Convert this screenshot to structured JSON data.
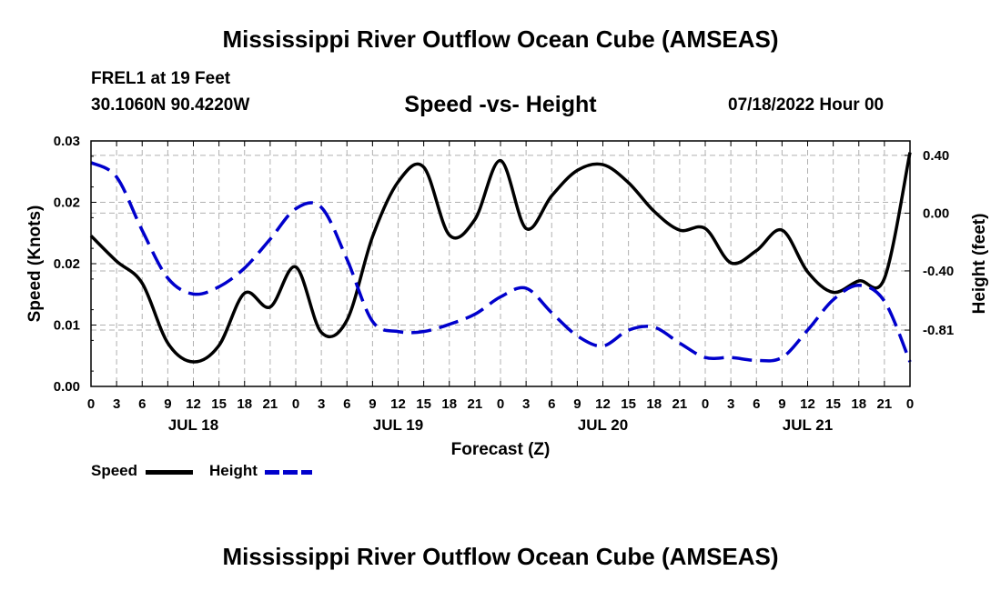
{
  "header": {
    "title": "Mississippi River Outflow Ocean Cube (AMSEAS)",
    "station": "FREL1 at 19 Feet",
    "coords": "30.1060N  90.4220W",
    "subtitle": "Speed -vs- Height",
    "datetime": "07/18/2022 Hour 00"
  },
  "footer": {
    "title": "Mississippi River Outflow Ocean Cube (AMSEAS)"
  },
  "legend": {
    "speed": "Speed",
    "height": "Height"
  },
  "chart_data": {
    "type": "line",
    "title": "Speed -vs- Height",
    "xlabel": "Forecast (Z)",
    "ylabel": "Speed (Knots)",
    "y2label": "Height (feet)",
    "x_range_hours": [
      0,
      96
    ],
    "x_ticks": [
      "0",
      "3",
      "6",
      "9",
      "12",
      "15",
      "18",
      "21",
      "0",
      "3",
      "6",
      "9",
      "12",
      "15",
      "18",
      "21",
      "0",
      "3",
      "6",
      "9",
      "12",
      "15",
      "18",
      "21",
      "0",
      "3",
      "6",
      "9",
      "12",
      "15",
      "18",
      "21",
      "0"
    ],
    "day_labels": [
      {
        "label": "JUL 18",
        "hour": 12
      },
      {
        "label": "JUL 19",
        "hour": 36
      },
      {
        "label": "JUL 20",
        "hour": 60
      },
      {
        "label": "JUL 21",
        "hour": 84
      }
    ],
    "ylim": [
      0,
      0.03
    ],
    "y_ticks": [
      "0.00",
      "0.01",
      "0.02",
      "0.02",
      "0.03"
    ],
    "y2lim": [
      -1.2,
      0.5
    ],
    "y2_ticks": [
      {
        "label": "0.40",
        "value": 0.4
      },
      {
        "label": "0.00",
        "value": 0.0
      },
      {
        "label": "-0.40",
        "value": -0.4
      },
      {
        "label": "-0.81",
        "value": -0.81
      }
    ],
    "grid": true,
    "series": [
      {
        "name": "Speed",
        "axis": "left",
        "color": "#000000",
        "dash": "solid",
        "hours": [
          0,
          3,
          6,
          9,
          12,
          15,
          18,
          21,
          24,
          27,
          30,
          33,
          36,
          39,
          42,
          45,
          48,
          51,
          54,
          57,
          60,
          63,
          66,
          69,
          72,
          75,
          78,
          81,
          84,
          87,
          90,
          93,
          96
        ],
        "values": [
          0.0184,
          0.0153,
          0.0126,
          0.0053,
          0.003,
          0.005,
          0.0114,
          0.0097,
          0.0146,
          0.0066,
          0.0081,
          0.0183,
          0.025,
          0.0268,
          0.0185,
          0.0204,
          0.0276,
          0.0193,
          0.0233,
          0.0264,
          0.0271,
          0.0249,
          0.0214,
          0.0191,
          0.0193,
          0.0151,
          0.0166,
          0.0191,
          0.014,
          0.0115,
          0.0129,
          0.0132,
          0.0286
        ]
      },
      {
        "name": "Height",
        "axis": "right",
        "color": "#0000cc",
        "dash": "dashed",
        "hours": [
          0,
          3,
          6,
          9,
          12,
          15,
          18,
          21,
          24,
          27,
          30,
          33,
          36,
          39,
          42,
          45,
          48,
          51,
          54,
          57,
          60,
          63,
          66,
          69,
          72,
          75,
          78,
          81,
          84,
          87,
          90,
          93,
          96
        ],
        "values": [
          0.35,
          0.25,
          -0.12,
          -0.45,
          -0.56,
          -0.51,
          -0.38,
          -0.18,
          0.03,
          0.04,
          -0.32,
          -0.75,
          -0.82,
          -0.82,
          -0.77,
          -0.7,
          -0.58,
          -0.52,
          -0.69,
          -0.85,
          -0.92,
          -0.81,
          -0.79,
          -0.9,
          -1.0,
          -1.0,
          -1.02,
          -1.0,
          -0.81,
          -0.6,
          -0.5,
          -0.61,
          -1.03
        ]
      }
    ]
  }
}
